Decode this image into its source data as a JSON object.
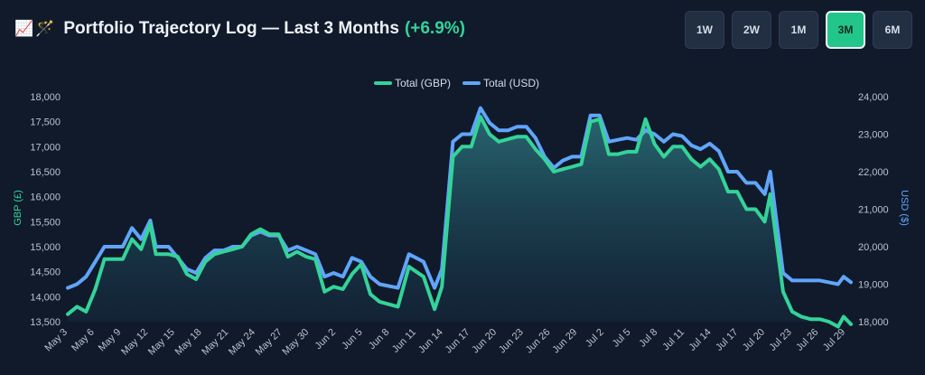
{
  "header": {
    "icons": [
      "chart-up-icon",
      "wand-icon"
    ],
    "icon_glyphs": "📈🪄",
    "title": "Portfolio Trajectory Log — Last 3 Months",
    "gain": "(+6.9%)"
  },
  "ranges": [
    {
      "label": "1W",
      "active": false
    },
    {
      "label": "2W",
      "active": false
    },
    {
      "label": "1M",
      "active": false
    },
    {
      "label": "3M",
      "active": true
    },
    {
      "label": "6M",
      "active": false
    }
  ],
  "colors": {
    "gbp": "#34d399",
    "usd": "#60a5fa",
    "background": "#101a2b"
  },
  "chart_data": {
    "type": "line",
    "legend_position": "top-center",
    "grid": false,
    "x_labels": [
      "May 3",
      "May 6",
      "May 9",
      "May 12",
      "May 15",
      "May 18",
      "May 21",
      "May 24",
      "May 27",
      "May 30",
      "Jun 2",
      "Jun 5",
      "Jun 8",
      "Jun 11",
      "Jun 14",
      "Jun 17",
      "Jun 20",
      "Jun 23",
      "Jun 26",
      "Jun 29",
      "Jul 2",
      "Jul 5",
      "Jul 8",
      "Jul 11",
      "Jul 14",
      "Jul 17",
      "Jul 20",
      "Jul 23",
      "Jul 26",
      "Jul 29"
    ],
    "y_left": {
      "label": "GBP (£)",
      "range": [
        13500,
        18000
      ],
      "ticks": [
        13500,
        14000,
        14500,
        15000,
        15500,
        16000,
        16500,
        17000,
        17500,
        18000
      ]
    },
    "y_right": {
      "label": "USD ($)",
      "range": [
        18000,
        24000
      ],
      "ticks": [
        18000,
        19000,
        20000,
        21000,
        22000,
        23000,
        24000
      ]
    },
    "series": [
      {
        "name": "Total (GBP)",
        "axis": "left",
        "values": [
          13650,
          13800,
          13700,
          14150,
          14750,
          14750,
          15150,
          14950,
          15450,
          14850,
          14850,
          14800,
          14450,
          14350,
          14700,
          14850,
          14900,
          14950,
          15000,
          15250,
          15350,
          15250,
          15250,
          14800,
          14900,
          14800,
          14750,
          14100,
          14200,
          14150,
          14450,
          14650,
          14050,
          13900,
          13800,
          14600,
          14400,
          13750,
          14200,
          16800,
          17000,
          17000,
          17600,
          17250,
          17100,
          17150,
          17200,
          17200,
          16950,
          16750,
          16500,
          16550,
          16600,
          16650,
          17500,
          17550,
          16850,
          16850,
          16900,
          16900,
          17550,
          17050,
          16800,
          17000,
          17000,
          16750,
          16600,
          16750,
          16550,
          16100,
          16100,
          15750,
          15750,
          15500,
          16050,
          14100,
          13700,
          13600,
          13550,
          13550,
          13500,
          13400,
          13600,
          13450
        ],
        "x_positions": [
          0,
          0.5,
          1,
          1.5,
          2,
          3,
          3.5,
          4,
          4.5,
          4.8,
          5.5,
          6,
          6.5,
          7,
          7.5,
          8,
          8.5,
          9,
          9.5,
          10,
          10.5,
          11,
          11.5,
          12,
          12.5,
          13,
          13.5,
          14,
          14.5,
          15,
          15.5,
          16,
          16.5,
          17,
          18,
          18.6,
          19.4,
          20,
          20.4,
          21,
          21.5,
          22,
          22.5,
          23,
          23.5,
          24,
          24.5,
          25,
          25.5,
          26,
          26.5,
          27,
          27.5,
          28,
          28.5,
          29,
          29.5,
          30,
          30.5,
          31,
          31.5,
          32,
          32.5,
          33,
          33.5,
          34,
          34.5,
          35,
          35.5,
          36,
          36.5,
          37,
          37.5,
          38,
          38.3,
          39,
          39.5,
          40,
          40.5,
          41,
          41.5,
          42,
          42.3,
          42.7
        ]
      },
      {
        "name": "Total (USD)",
        "axis": "right",
        "values": [
          18900,
          19000,
          19200,
          19600,
          20000,
          20000,
          20500,
          20200,
          20700,
          20000,
          20000,
          19700,
          19400,
          19300,
          19700,
          19900,
          19900,
          20000,
          20000,
          20300,
          20400,
          20300,
          20300,
          19900,
          20000,
          19900,
          19800,
          19200,
          19300,
          19200,
          19700,
          19600,
          19200,
          19000,
          18900,
          19800,
          19600,
          18900,
          19400,
          22800,
          23000,
          23000,
          23700,
          23300,
          23100,
          23100,
          23200,
          23200,
          22900,
          22400,
          22100,
          22300,
          22400,
          22400,
          23500,
          23500,
          22800,
          22850,
          22900,
          22850,
          23100,
          23000,
          22800,
          23000,
          22950,
          22700,
          22600,
          22750,
          22550,
          22000,
          22000,
          21700,
          21700,
          21400,
          22000,
          19300,
          19100,
          19100,
          19100,
          19100,
          19050,
          19000,
          19200,
          19050
        ],
        "x_positions": [
          0,
          0.5,
          1,
          1.5,
          2,
          3,
          3.5,
          4,
          4.5,
          4.8,
          5.5,
          6,
          6.5,
          7,
          7.5,
          8,
          8.5,
          9,
          9.5,
          10,
          10.5,
          11,
          11.5,
          12,
          12.5,
          13,
          13.5,
          14,
          14.5,
          15,
          15.5,
          16,
          16.5,
          17,
          18,
          18.6,
          19.4,
          20,
          20.4,
          21,
          21.5,
          22,
          22.5,
          23,
          23.5,
          24,
          24.5,
          25,
          25.5,
          26,
          26.5,
          27,
          27.5,
          28,
          28.5,
          29,
          29.5,
          30,
          30.5,
          31,
          31.5,
          32,
          32.5,
          33,
          33.5,
          34,
          34.5,
          35,
          35.5,
          36,
          36.5,
          37,
          37.5,
          38,
          38.3,
          39,
          39.5,
          40,
          40.5,
          41,
          41.5,
          42,
          42.3,
          42.7
        ]
      }
    ]
  }
}
